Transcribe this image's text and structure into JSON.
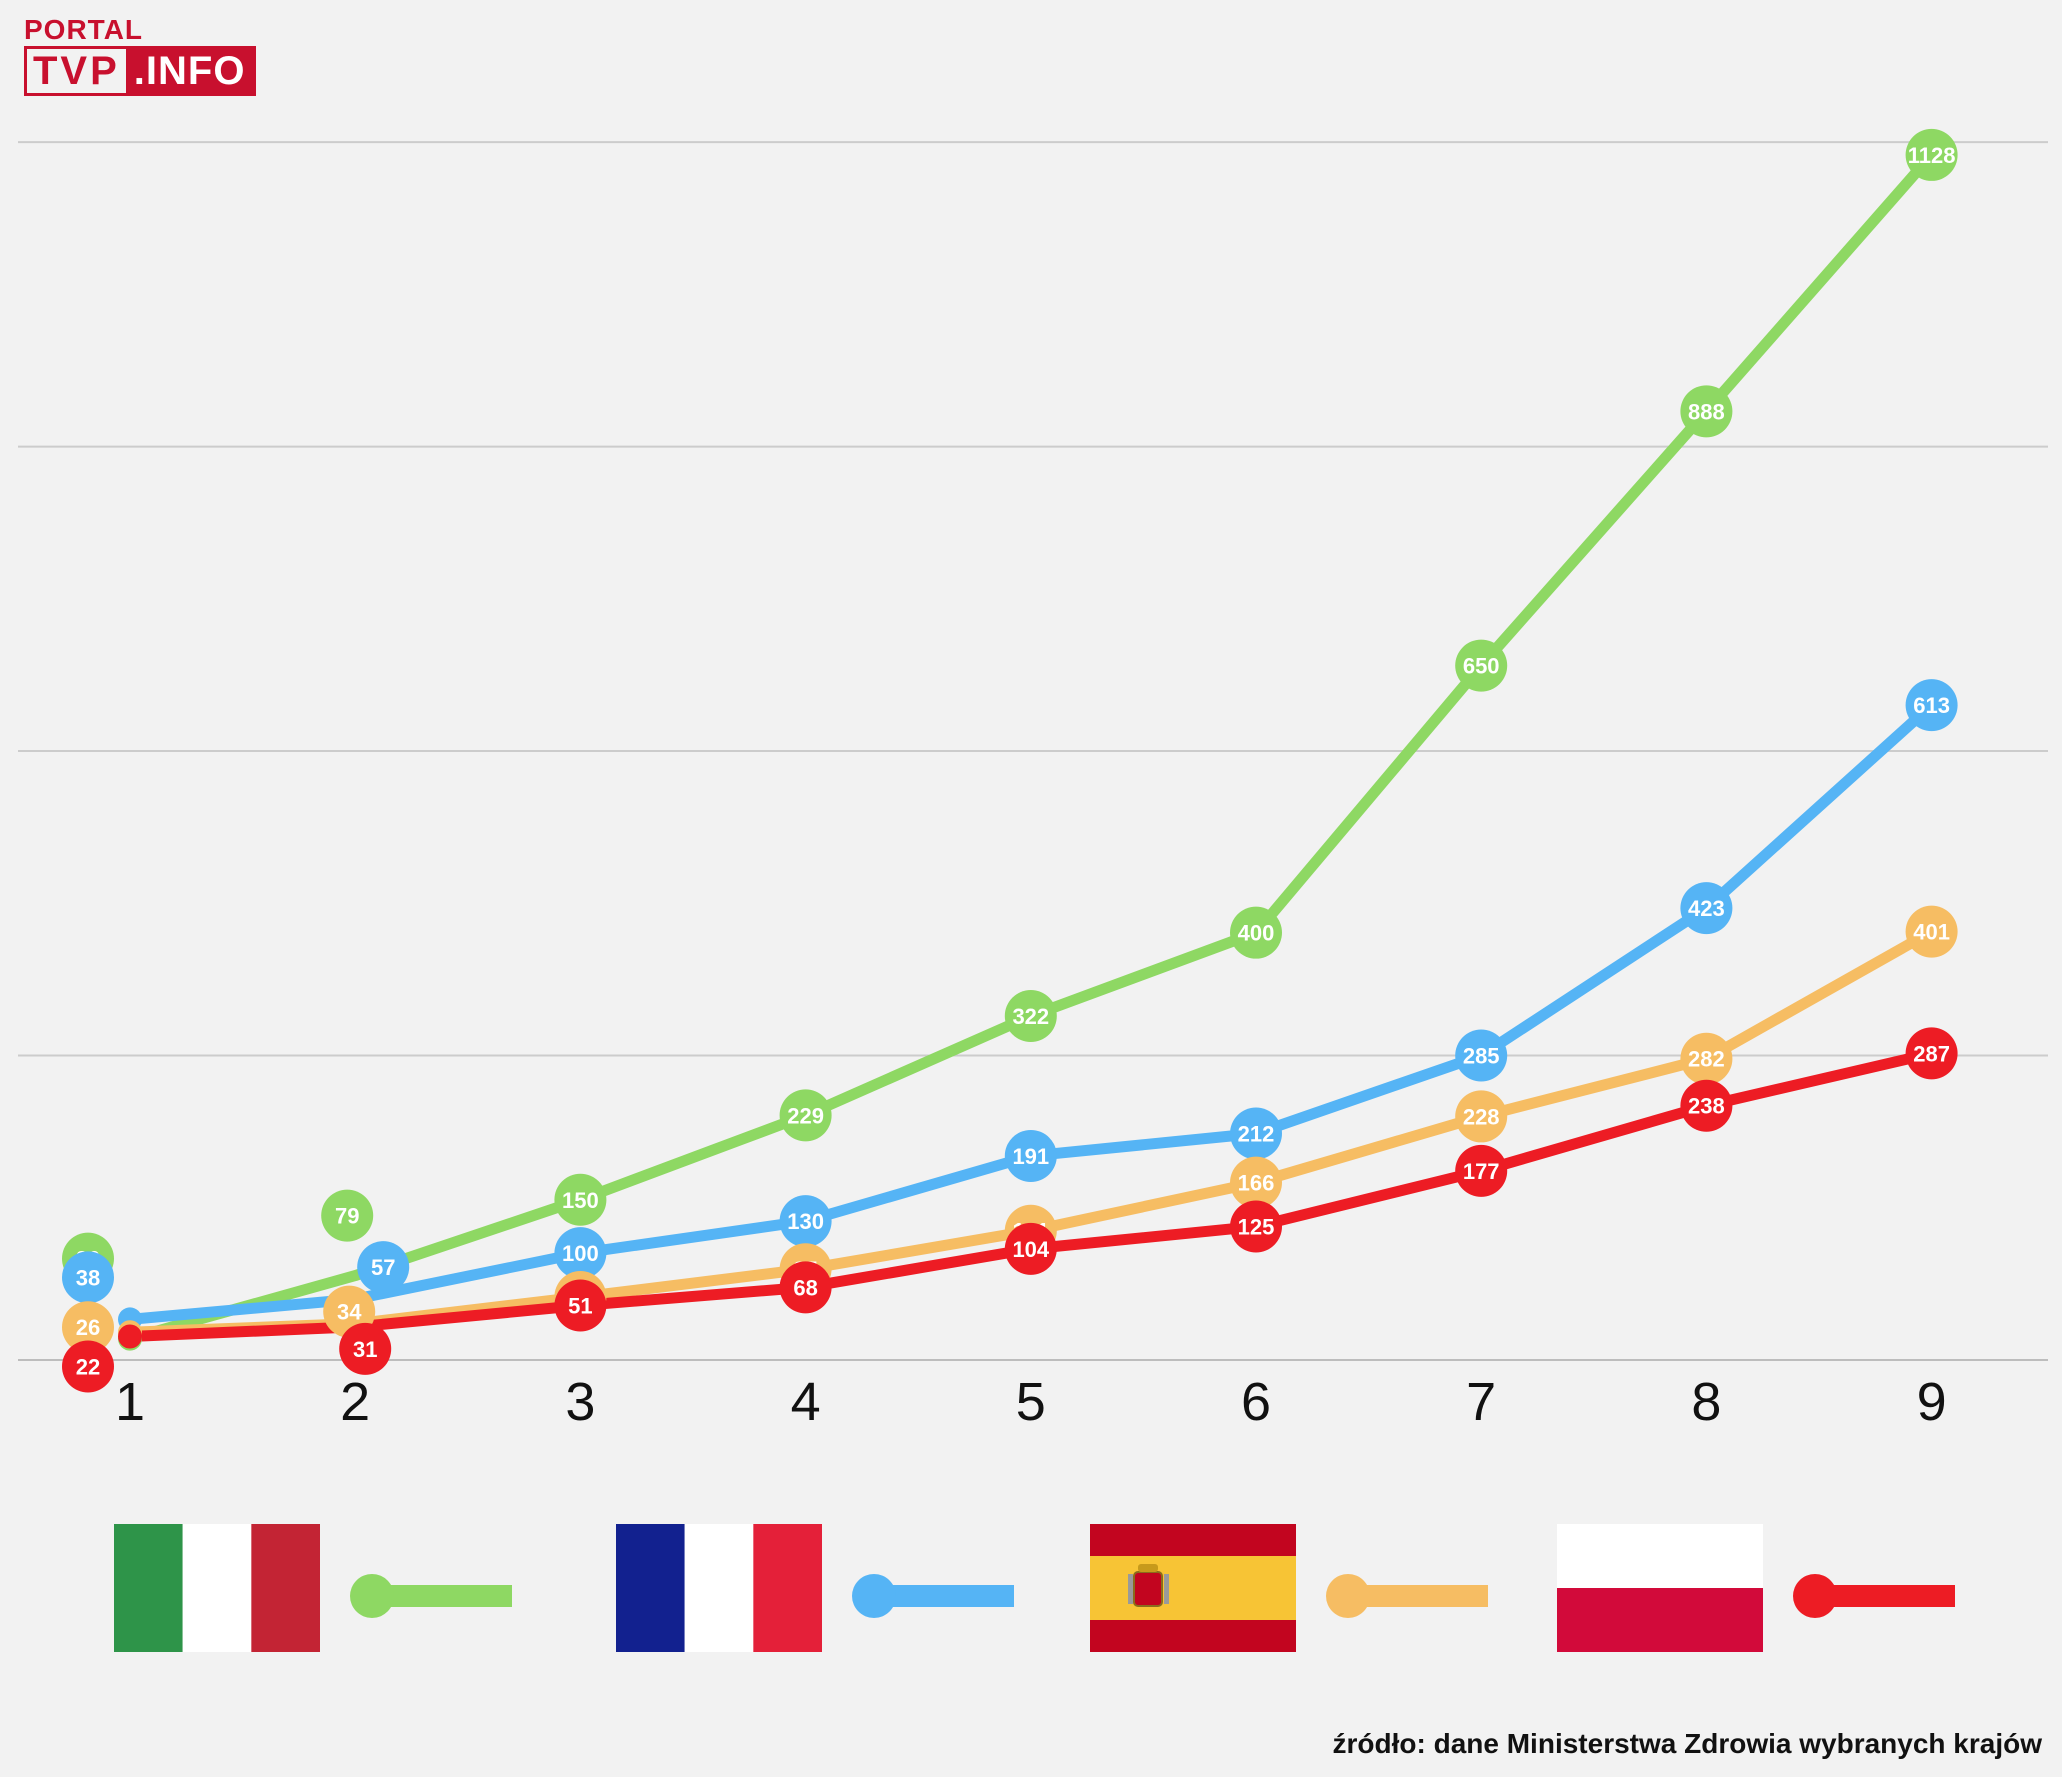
{
  "logo": {
    "line1": "PORTAL",
    "tvp": "TVP",
    "info": ".INFO"
  },
  "source_text": "źródło: dane Ministerstwa Zdrowia wybranych krajów",
  "chart_data": {
    "type": "line",
    "x": [
      1,
      2,
      3,
      4,
      5,
      6,
      7,
      8,
      9
    ],
    "ylim": [
      0,
      1200
    ],
    "grid": true,
    "legend": "bottom",
    "series": [
      {
        "values": [
          20,
          79,
          150,
          229,
          322,
          400,
          650,
          888,
          1128
        ],
        "color": "#8ed863",
        "flag": "italy-flag"
      },
      {
        "values": [
          38,
          57,
          100,
          130,
          191,
          212,
          285,
          423,
          613
        ],
        "color": "#55b4f5",
        "flag": "france-flag"
      },
      {
        "values": [
          26,
          34,
          59,
          85,
          121,
          166,
          228,
          282,
          401
        ],
        "color": "#f6bd63",
        "flag": "spain-flag"
      },
      {
        "values": [
          22,
          31,
          51,
          68,
          104,
          125,
          177,
          238,
          287
        ],
        "color": "#ed1c24",
        "flag": "poland-flag"
      }
    ]
  }
}
